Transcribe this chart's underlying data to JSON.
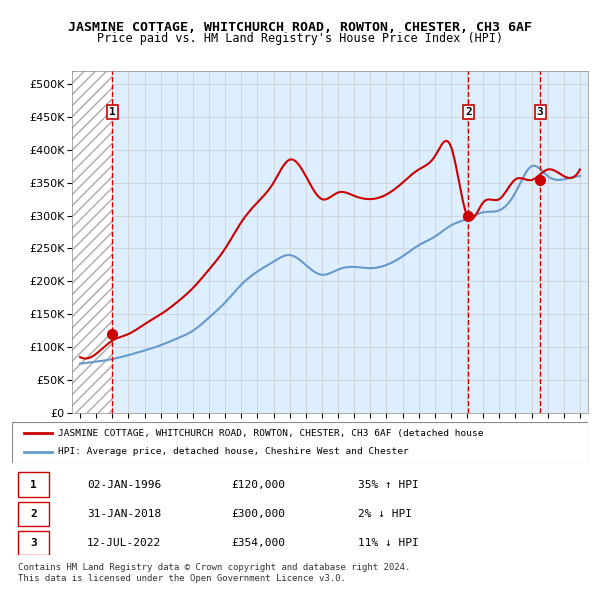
{
  "title": "JASMINE COTTAGE, WHITCHURCH ROAD, ROWTON, CHESTER, CH3 6AF",
  "subtitle": "Price paid vs. HM Land Registry's House Price Index (HPI)",
  "ylabel_ticks": [
    "£0",
    "£50K",
    "£100K",
    "£150K",
    "£200K",
    "£250K",
    "£300K",
    "£350K",
    "£400K",
    "£450K",
    "£500K"
  ],
  "ytick_values": [
    0,
    50000,
    100000,
    150000,
    200000,
    250000,
    300000,
    350000,
    400000,
    450000,
    500000
  ],
  "ylim": [
    0,
    520000
  ],
  "xlim_start": 1993.5,
  "xlim_end": 2025.5,
  "xtick_years": [
    1994,
    1995,
    1996,
    1997,
    1998,
    1999,
    2000,
    2001,
    2002,
    2003,
    2004,
    2005,
    2006,
    2007,
    2008,
    2009,
    2010,
    2011,
    2012,
    2013,
    2014,
    2015,
    2016,
    2017,
    2018,
    2019,
    2020,
    2021,
    2022,
    2023,
    2024,
    2025
  ],
  "hpi_color": "#6699cc",
  "price_color": "#cc0000",
  "sale_marker_color": "#cc0000",
  "dashed_line_color": "#cc0000",
  "grid_color": "#cccccc",
  "bg_color": "#ddeeff",
  "hatch_color": "#cccccc",
  "sale_points": [
    {
      "year": 1996.0,
      "price": 120000,
      "label": "1"
    },
    {
      "year": 2018.08,
      "price": 300000,
      "label": "2"
    },
    {
      "year": 2022.53,
      "price": 354000,
      "label": "3"
    }
  ],
  "legend_entries": [
    "JASMINE COTTAGE, WHITCHURCH ROAD, ROWTON, CHESTER, CH3 6AF (detached house",
    "HPI: Average price, detached house, Cheshire West and Chester"
  ],
  "table_rows": [
    {
      "num": "1",
      "date": "02-JAN-1996",
      "price": "£120,000",
      "hpi": "35% ↑ HPI"
    },
    {
      "num": "2",
      "date": "31-JAN-2018",
      "price": "£300,000",
      "hpi": "2% ↓ HPI"
    },
    {
      "num": "3",
      "date": "12-JUL-2022",
      "price": "£354,000",
      "hpi": "11% ↓ HPI"
    }
  ],
  "footer": "Contains HM Land Registry data © Crown copyright and database right 2024.\nThis data is licensed under the Open Government Licence v3.0.",
  "hpi_data_x": [
    1994,
    1995,
    1996,
    1997,
    1998,
    1999,
    2000,
    2001,
    2002,
    2003,
    2004,
    2005,
    2006,
    2007,
    2008,
    2009,
    2010,
    2011,
    2012,
    2013,
    2014,
    2015,
    2016,
    2017,
    2018,
    2019,
    2020,
    2021,
    2022,
    2023,
    2024,
    2025
  ],
  "hpi_data_y": [
    75000,
    78000,
    82000,
    88000,
    95000,
    103000,
    113000,
    125000,
    145000,
    168000,
    195000,
    215000,
    230000,
    240000,
    225000,
    210000,
    218000,
    222000,
    220000,
    225000,
    238000,
    255000,
    268000,
    285000,
    295000,
    305000,
    308000,
    335000,
    375000,
    360000,
    355000,
    360000
  ],
  "price_data_x": [
    1994,
    1995,
    1996,
    1997,
    1998,
    1999,
    2000,
    2001,
    2002,
    2003,
    2004,
    2005,
    2006,
    2007,
    2008,
    2009,
    2010,
    2011,
    2012,
    2013,
    2014,
    2015,
    2016,
    2017,
    2018,
    2019,
    2020,
    2021,
    2022,
    2023,
    2024,
    2025
  ],
  "price_data_y": [
    85000,
    90000,
    110000,
    120000,
    135000,
    150000,
    168000,
    190000,
    218000,
    250000,
    290000,
    320000,
    350000,
    385000,
    360000,
    325000,
    335000,
    330000,
    325000,
    332000,
    350000,
    370000,
    390000,
    405000,
    300000,
    320000,
    325000,
    355000,
    354000,
    370000,
    360000,
    370000
  ]
}
